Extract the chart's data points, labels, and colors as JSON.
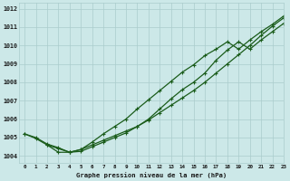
{
  "title": "Graphe pression niveau de la mer (hPa)",
  "background_color": "#cce8e8",
  "grid_color": "#aacccc",
  "line_color": "#1a5c1a",
  "xlim": [
    -0.5,
    23
  ],
  "ylim": [
    1003.6,
    1012.3
  ],
  "xticks": [
    0,
    1,
    2,
    3,
    4,
    5,
    6,
    7,
    8,
    9,
    10,
    11,
    12,
    13,
    14,
    15,
    16,
    17,
    18,
    19,
    20,
    21,
    22,
    23
  ],
  "yticks": [
    1004,
    1005,
    1006,
    1007,
    1008,
    1009,
    1010,
    1011,
    1012
  ],
  "series1_x": [
    0,
    1,
    2,
    3,
    4,
    5,
    6,
    7,
    8,
    9,
    10,
    11,
    12,
    13,
    14,
    15,
    16,
    17,
    18,
    19,
    20,
    21,
    22,
    23
  ],
  "series1_y": [
    1005.2,
    1005.0,
    1004.65,
    1004.45,
    1004.2,
    1004.25,
    1004.5,
    1004.75,
    1005.0,
    1005.25,
    1005.6,
    1005.95,
    1006.35,
    1006.75,
    1007.15,
    1007.55,
    1008.0,
    1008.5,
    1009.0,
    1009.5,
    1010.0,
    1010.55,
    1011.05,
    1011.5
  ],
  "series2_x": [
    0,
    1,
    2,
    3,
    4,
    5,
    6,
    7,
    8,
    9,
    10,
    11,
    12,
    13,
    14,
    15,
    16,
    17,
    18,
    19,
    20,
    21,
    22,
    23
  ],
  "series2_y": [
    1005.2,
    1004.95,
    1004.6,
    1004.4,
    1004.2,
    1004.35,
    1004.75,
    1005.2,
    1005.6,
    1006.0,
    1006.55,
    1007.05,
    1007.55,
    1008.05,
    1008.55,
    1008.95,
    1009.45,
    1009.8,
    1010.2,
    1009.8,
    1010.3,
    1010.75,
    1011.15,
    1011.6
  ],
  "series3_x": [
    2,
    3,
    4,
    5,
    6,
    7,
    8,
    9,
    10,
    11,
    12,
    13,
    14,
    15,
    16,
    17,
    18,
    19,
    20,
    21,
    22,
    23
  ],
  "series3_y": [
    1004.6,
    1004.2,
    1004.2,
    1004.35,
    1004.6,
    1004.85,
    1005.1,
    1005.35,
    1005.6,
    1006.0,
    1006.55,
    1007.1,
    1007.6,
    1008.0,
    1008.5,
    1009.2,
    1009.75,
    1010.2,
    1009.8,
    1010.3,
    1010.75,
    1011.2
  ]
}
